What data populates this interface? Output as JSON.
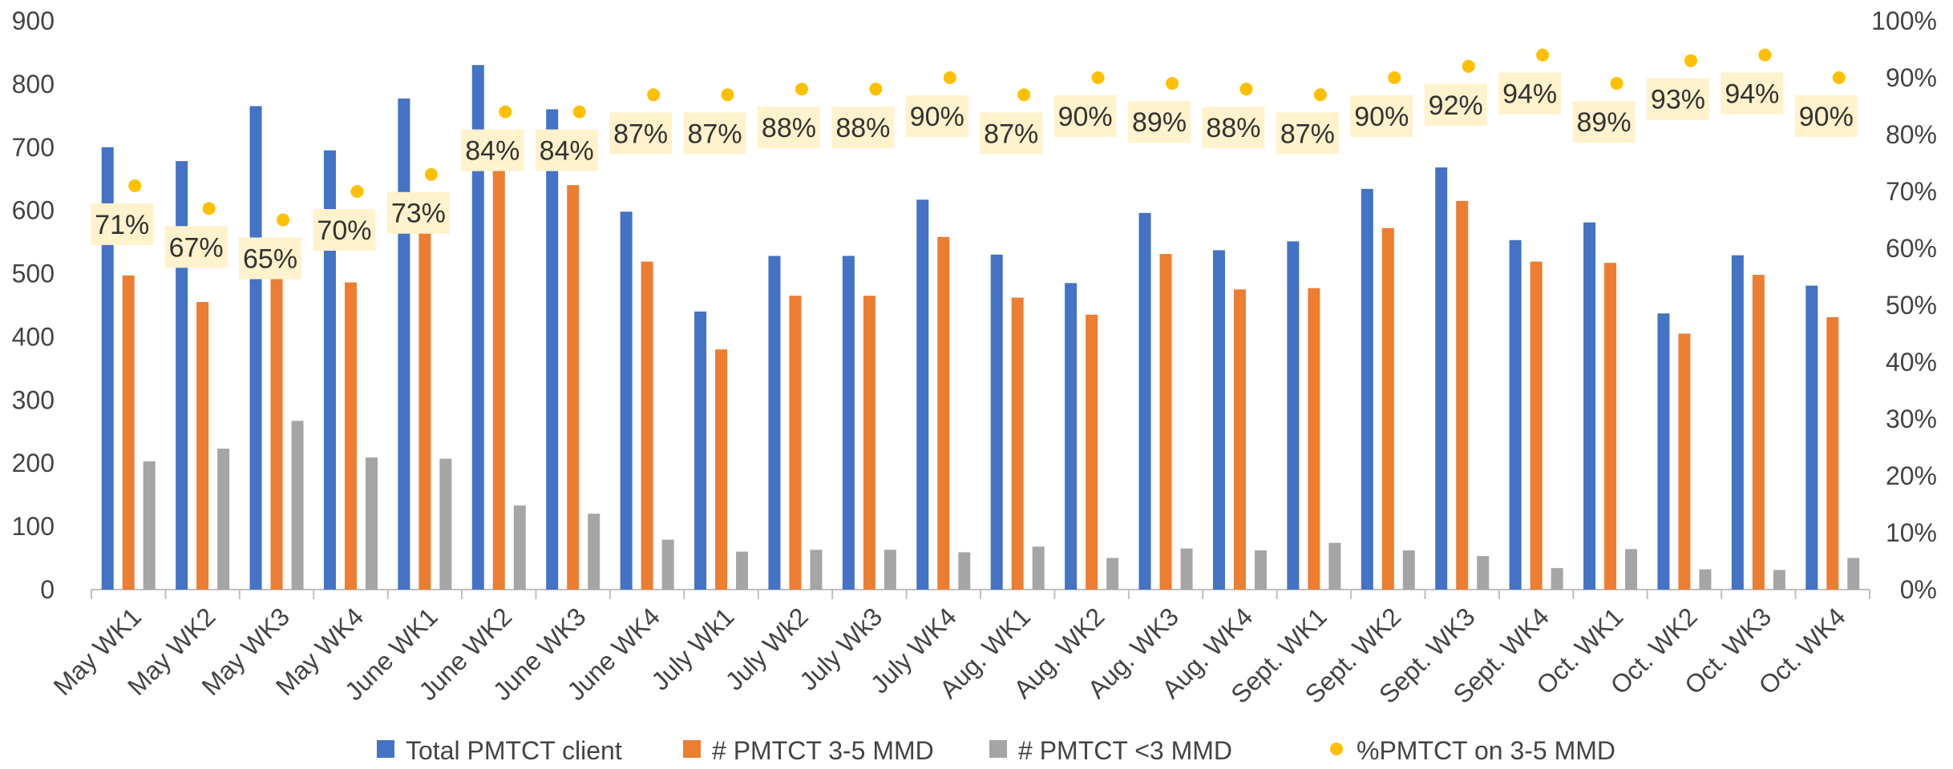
{
  "chart_data": {
    "type": "bar",
    "title": "",
    "xlabel": "",
    "ylabel": "",
    "categories": [
      "May WK1",
      "May WK2",
      "May WK3",
      "May WK4",
      "June WK1",
      "June WK2",
      "June WK3",
      "June WK4",
      "July Wk1",
      "July Wk2",
      "July Wk3",
      "July WK4",
      "Aug. WK1",
      "Aug. WK2",
      "Aug. WK3",
      "Aug. WK4",
      "Sept. WK1",
      "Sept. WK2",
      "Sept. WK3",
      "Sept. WK4",
      "Oct. WK1",
      "Oct. WK2",
      "Oct. WK3",
      "Oct. WK4"
    ],
    "series": [
      {
        "name": "Total PMTCT client",
        "type": "bar",
        "axis": "left",
        "color": "#4472C4",
        "values": [
          700,
          678,
          765,
          695,
          777,
          830,
          760,
          598,
          440,
          528,
          528,
          617,
          530,
          485,
          596,
          537,
          551,
          634,
          668,
          553,
          581,
          437,
          529,
          481
        ]
      },
      {
        "name": "# PMTCT 3-5 MMD",
        "type": "bar",
        "axis": "left",
        "color": "#ED7D31",
        "values": [
          497,
          455,
          498,
          486,
          570,
          697,
          640,
          519,
          380,
          465,
          465,
          558,
          462,
          435,
          531,
          475,
          477,
          572,
          615,
          519,
          517,
          405,
          498,
          431
        ]
      },
      {
        "name": "# PMTCT <3 MMD",
        "type": "bar",
        "axis": "left",
        "color": "#A5A5A5",
        "values": [
          203,
          223,
          267,
          209,
          207,
          133,
          120,
          79,
          60,
          63,
          63,
          59,
          68,
          50,
          65,
          62,
          74,
          62,
          53,
          34,
          64,
          32,
          31,
          50
        ]
      },
      {
        "name": "%PMTCT on 3-5 MMD",
        "type": "scatter",
        "axis": "right",
        "color": "#FFC000",
        "values": [
          71,
          67,
          65,
          70,
          73,
          84,
          84,
          87,
          87,
          88,
          88,
          90,
          87,
          90,
          89,
          88,
          87,
          90,
          92,
          94,
          89,
          93,
          94,
          90
        ],
        "labels": [
          "71%",
          "67%",
          "65%",
          "70%",
          "73%",
          "84%",
          "84%",
          "87%",
          "87%",
          "88%",
          "88%",
          "90%",
          "87%",
          "90%",
          "89%",
          "88%",
          "87%",
          "90%",
          "92%",
          "94%",
          "89%",
          "93%",
          "94%",
          "90%"
        ]
      }
    ],
    "ylim": [
      0,
      900
    ],
    "yticks": [
      0,
      100,
      200,
      300,
      400,
      500,
      600,
      700,
      800,
      900
    ],
    "y2lim": [
      0,
      100
    ],
    "y2ticks": [
      "0%",
      "10%",
      "20%",
      "30%",
      "40%",
      "50%",
      "60%",
      "70%",
      "80%",
      "90%",
      "100%"
    ],
    "grid": false,
    "legend_position": "bottom",
    "label_background": "#FFF2CC"
  }
}
